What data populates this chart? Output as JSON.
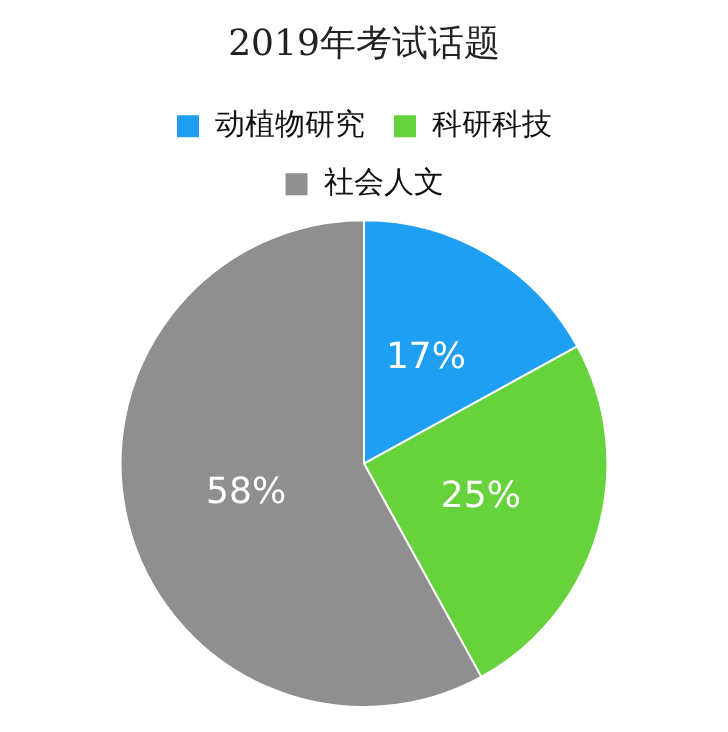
{
  "chart_data": {
    "type": "pie",
    "title": "2019年考试话题",
    "categories": [
      "动植物研究",
      "科研科技",
      "社会人文"
    ],
    "values": [
      17,
      25,
      58
    ],
    "value_labels": [
      "17%",
      "25%",
      "58%"
    ],
    "colors": [
      "#1e9ff2",
      "#66d33d",
      "#8f8f8f"
    ],
    "legend": "top"
  }
}
